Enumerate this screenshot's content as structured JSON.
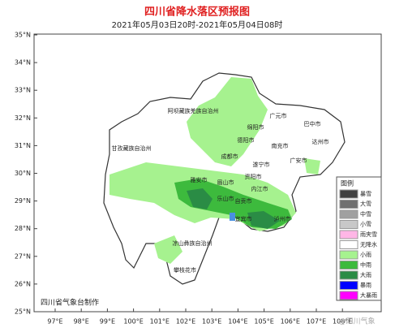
{
  "header": {
    "title": "四川省降水落区预报图",
    "subtitle": "2021年05月03日20时-2021年05月04日08时"
  },
  "lat_labels": [
    "35°N",
    "34°N",
    "33°N",
    "32°N",
    "31°N",
    "30°N",
    "29°N",
    "28°N",
    "27°N",
    "26°N",
    "25°N"
  ],
  "lon_labels": [
    "97°E",
    "98°E",
    "99°E",
    "100°E",
    "101°E",
    "102°E",
    "103°E",
    "104°E",
    "105°E",
    "106°E",
    "107°E",
    "108°E"
  ],
  "places": [
    "阿坝藏族羌族自治州",
    "甘孜藏族自治州",
    "广元市",
    "巴中市",
    "绵阳市",
    "德阳市",
    "达州市",
    "南充市",
    "成都市",
    "广安市",
    "遂宁市",
    "资阳市",
    "雅安市",
    "眉山市",
    "内江市",
    "乐山市",
    "自贡市",
    "宜宾市",
    "泸州市",
    "凉山彝族自治州",
    "攀枝花市"
  ],
  "legend": {
    "title": "图例",
    "items": [
      {
        "label": "暴雪",
        "color": "#404040"
      },
      {
        "label": "大雪",
        "color": "#707070"
      },
      {
        "label": "中雪",
        "color": "#a0a0a0"
      },
      {
        "label": "小雪",
        "color": "#c8c8c8"
      },
      {
        "label": "雨夹雪",
        "color": "#ffb6e6"
      },
      {
        "label": "无降水",
        "color": "#ffffff"
      },
      {
        "label": "小雨",
        "color": "#a6f28f"
      },
      {
        "label": "中雨",
        "color": "#3dba3d"
      },
      {
        "label": "大雨",
        "color": "#2a8c45"
      },
      {
        "label": "暴雨",
        "color": "#0000ff"
      },
      {
        "label": "大暴雨",
        "color": "#ff00ff"
      }
    ]
  },
  "footer": "四川省气象台制作",
  "watermark": "@四川气象"
}
